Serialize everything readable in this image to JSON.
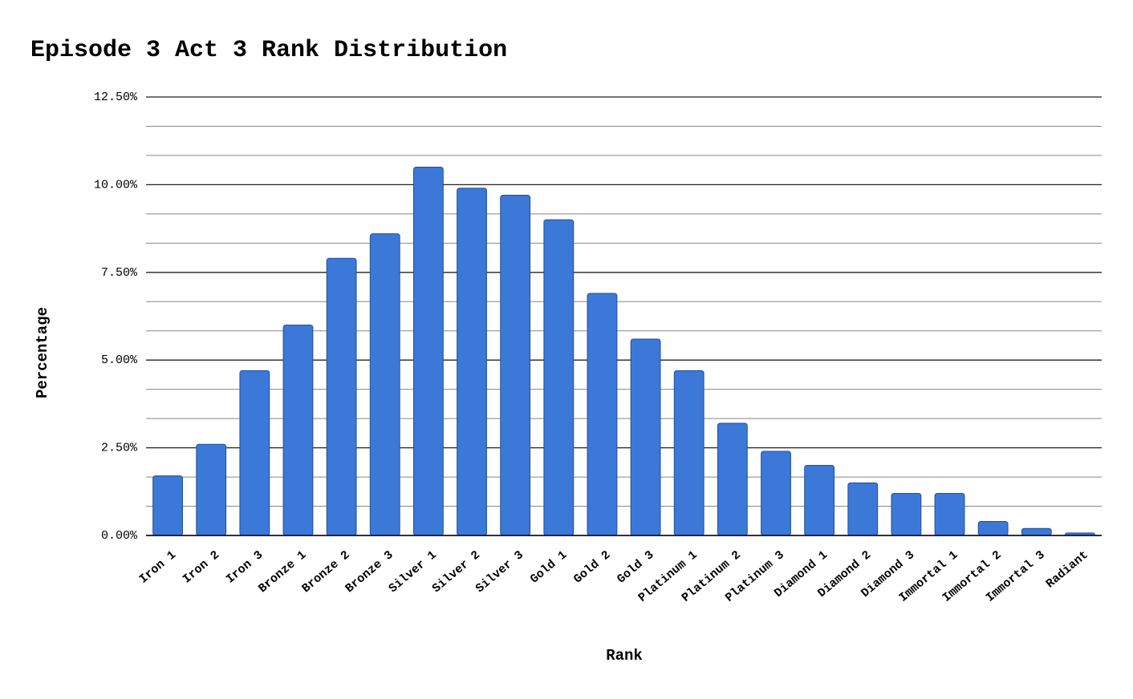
{
  "chart_data": {
    "type": "bar",
    "title": "Episode 3 Act 3 Rank Distribution",
    "x_label": "Rank",
    "y_label": "Percentage",
    "categories": [
      "Iron 1",
      "Iron 2",
      "Iron 3",
      "Bronze 1",
      "Bronze 2",
      "Bronze 3",
      "Silver 1",
      "Silver 2",
      "Silver 3",
      "Gold 1",
      "Gold 2",
      "Gold 3",
      "Platinum 1",
      "Platinum 2",
      "Platinum 3",
      "Diamond 1",
      "Diamond 2",
      "Diamond 3",
      "Immortal 1",
      "Immortal 2",
      "Immortal 3",
      "Radiant"
    ],
    "values": [
      1.7,
      2.6,
      4.7,
      6.0,
      7.9,
      8.6,
      10.5,
      9.9,
      9.7,
      9.0,
      6.9,
      5.6,
      4.7,
      3.2,
      2.4,
      2.0,
      1.5,
      1.2,
      1.2,
      0.4,
      0.2,
      0.07
    ],
    "color": "#3c78d8",
    "ylim": [
      0,
      12.5
    ],
    "yticks": [
      {
        "value": 0,
        "label": "0.00%"
      },
      {
        "value": 2.5,
        "label": "2.50%"
      },
      {
        "value": 5,
        "label": "5.00%"
      },
      {
        "value": 7.5,
        "label": "7.50%"
      },
      {
        "value": 10,
        "label": "10.00%"
      },
      {
        "value": 12.5,
        "label": "12.50%"
      }
    ],
    "grid": true
  }
}
